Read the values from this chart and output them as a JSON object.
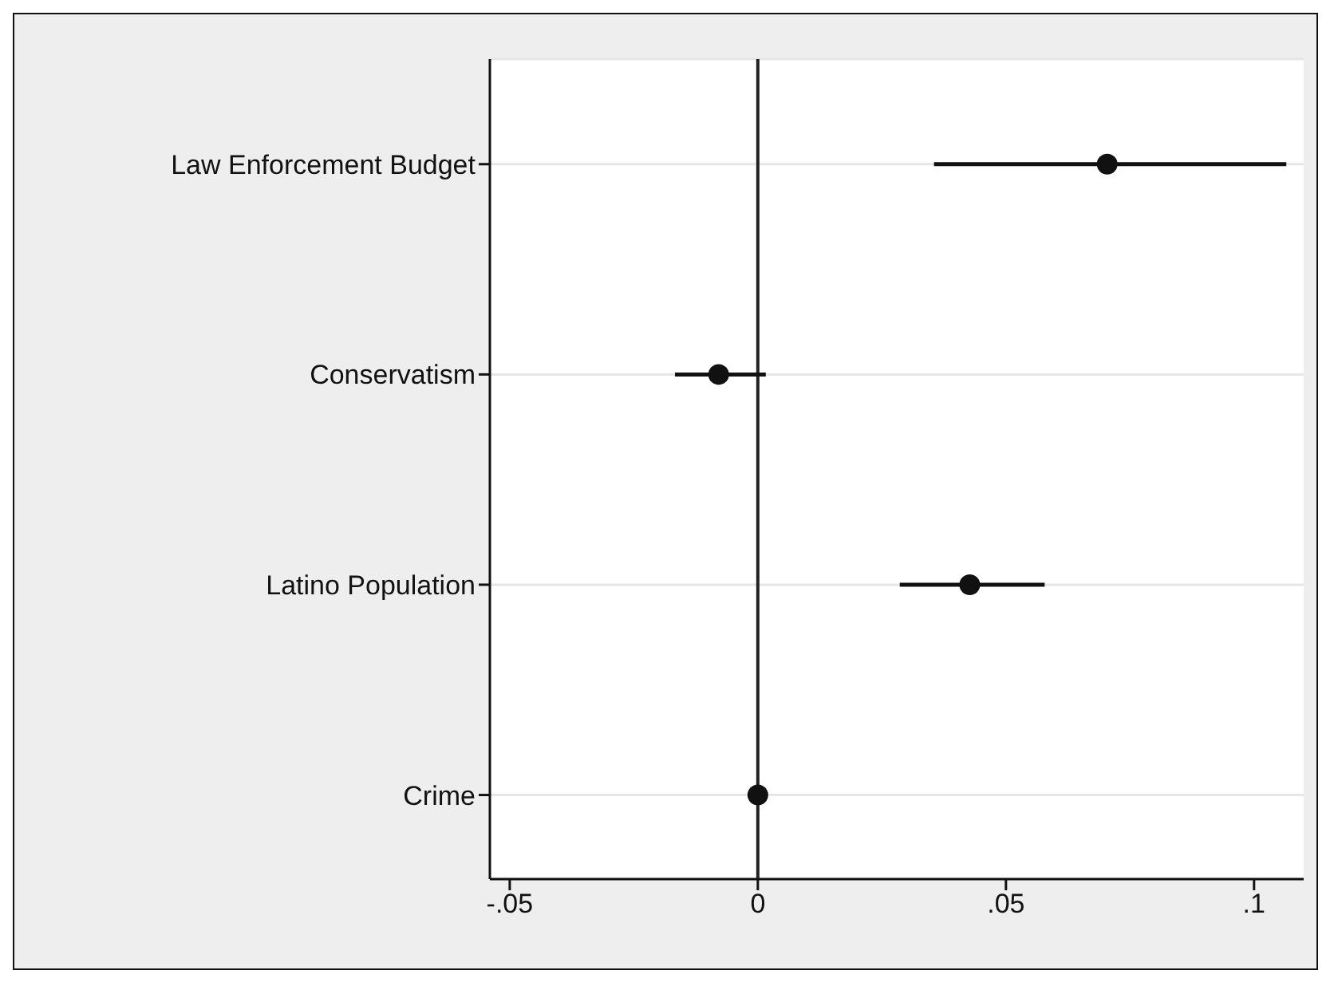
{
  "chart_data": {
    "type": "scatter",
    "orientation": "horizontal",
    "categories": [
      "Law Enforcement Budget",
      "Conservatism",
      "Latino Population",
      "Crime"
    ],
    "values": [
      0.0704,
      -0.0079,
      0.0427,
      0
    ],
    "errors": [
      [
        0.0355,
        0.1065
      ],
      [
        -0.0167,
        0.0016
      ],
      [
        0.0286,
        0.0578
      ],
      null
    ],
    "color": "#111111",
    "marker": "circle",
    "xlim": [
      -0.054,
      0.11
    ],
    "xticks": [
      {
        "value": -0.05,
        "label": "-.05"
      },
      0,
      {
        "value": 0.05,
        "label": ".05"
      },
      {
        "value": 0.1,
        "label": ".1"
      }
    ],
    "ref_lines": [
      {
        "axis": "x",
        "value": 0,
        "color": "#222222"
      }
    ],
    "grid": "y",
    "legend": false
  }
}
